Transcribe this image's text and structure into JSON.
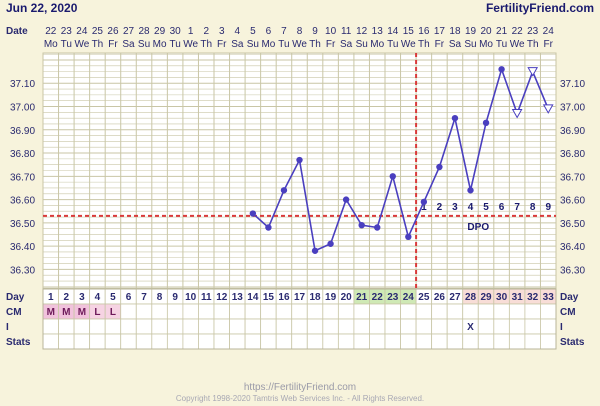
{
  "header": {
    "date_title": "Jun 22, 2020",
    "site": "FertilityFriend.com",
    "date_label": "Date"
  },
  "footer": {
    "url": "https://FertilityFriend.com",
    "copyright": "Copyright 1998-2020 Tamtris Web Services Inc. - All Rights Reserved."
  },
  "chart_data": {
    "type": "line",
    "title": "Jun 22, 2020",
    "x_dates": [
      "22",
      "23",
      "24",
      "25",
      "26",
      "27",
      "28",
      "29",
      "30",
      "1",
      "2",
      "3",
      "4",
      "5",
      "6",
      "7",
      "8",
      "9",
      "10",
      "11",
      "12",
      "13",
      "14",
      "15",
      "16",
      "17",
      "18",
      "19",
      "20",
      "21",
      "22",
      "23",
      "24"
    ],
    "x_weekdays": [
      "Mo",
      "Tu",
      "We",
      "Th",
      "Fr",
      "Sa",
      "Su",
      "Mo",
      "Tu",
      "We",
      "Th",
      "Fr",
      "Sa",
      "Su",
      "Mo",
      "Tu",
      "We",
      "Th",
      "Fr",
      "Sa",
      "Su",
      "Mo",
      "Tu",
      "We",
      "Th",
      "Fr",
      "Sa",
      "Su",
      "Mo",
      "Tu",
      "We",
      "Th",
      "Fr"
    ],
    "cycle_days": [
      "1",
      "2",
      "3",
      "4",
      "5",
      "6",
      "7",
      "8",
      "9",
      "10",
      "11",
      "12",
      "13",
      "14",
      "15",
      "16",
      "17",
      "18",
      "19",
      "20",
      "21",
      "22",
      "23",
      "24",
      "25",
      "26",
      "27",
      "28",
      "29",
      "30",
      "31",
      "32",
      "33"
    ],
    "y_ticks": [
      "37.10",
      "37.00",
      "36.90",
      "36.80",
      "36.70",
      "36.60",
      "36.50",
      "36.40",
      "36.30"
    ],
    "ylim": [
      36.22,
      37.23
    ],
    "series": [
      {
        "points": [
          {
            "day": 14,
            "temp": 36.54
          },
          {
            "day": 15,
            "temp": 36.48
          },
          {
            "day": 16,
            "temp": 36.64
          },
          {
            "day": 17,
            "temp": 36.77
          },
          {
            "day": 18,
            "temp": 36.38
          },
          {
            "day": 19,
            "temp": 36.41
          },
          {
            "day": 20,
            "temp": 36.6
          },
          {
            "day": 21,
            "temp": 36.49
          },
          {
            "day": 22,
            "temp": 36.48
          },
          {
            "day": 23,
            "temp": 36.7
          },
          {
            "day": 24,
            "temp": 36.44
          },
          {
            "day": 25,
            "temp": 36.59
          },
          {
            "day": 26,
            "temp": 36.74
          },
          {
            "day": 27,
            "temp": 36.95
          },
          {
            "day": 28,
            "temp": 36.64
          },
          {
            "day": 29,
            "temp": 36.93
          },
          {
            "day": 30,
            "temp": 37.16
          },
          {
            "day": 31,
            "temp": 36.97,
            "marker": "open-triangle"
          },
          {
            "day": 32,
            "temp": 37.15,
            "marker": "open-triangle"
          },
          {
            "day": 33,
            "temp": 36.99,
            "marker": "open-triangle"
          }
        ]
      }
    ],
    "coverline": 36.53,
    "ovulation_day": 24,
    "dpo_label": "DPO",
    "dpo_numbers": [
      "1",
      "2",
      "3",
      "4",
      "5",
      "6",
      "7",
      "8",
      "9"
    ],
    "dpo_start_day": 25,
    "grid": true,
    "colors": {
      "line": "#4a3fbf",
      "marker": "#4a3fbf",
      "coverline": "#d93a3a",
      "ovulation": "#d93a3a",
      "grid": "#c9c6a6",
      "background": "#f7f3dc",
      "plot_background": "#ffffff"
    }
  },
  "rows": {
    "labels": {
      "day": "Day",
      "cm": "CM",
      "i": "I",
      "stats": "Stats"
    },
    "cm": [
      "M",
      "M",
      "M",
      "L",
      "L"
    ],
    "cm_colors": {
      "M": "#f1c2dc",
      "L": "#f6d3e3"
    },
    "green_days": [
      21,
      22,
      23,
      24
    ],
    "pink_days": [
      28,
      29,
      30,
      31,
      32,
      33
    ],
    "i_marks": [
      {
        "day": 28,
        "label": "X"
      }
    ]
  }
}
